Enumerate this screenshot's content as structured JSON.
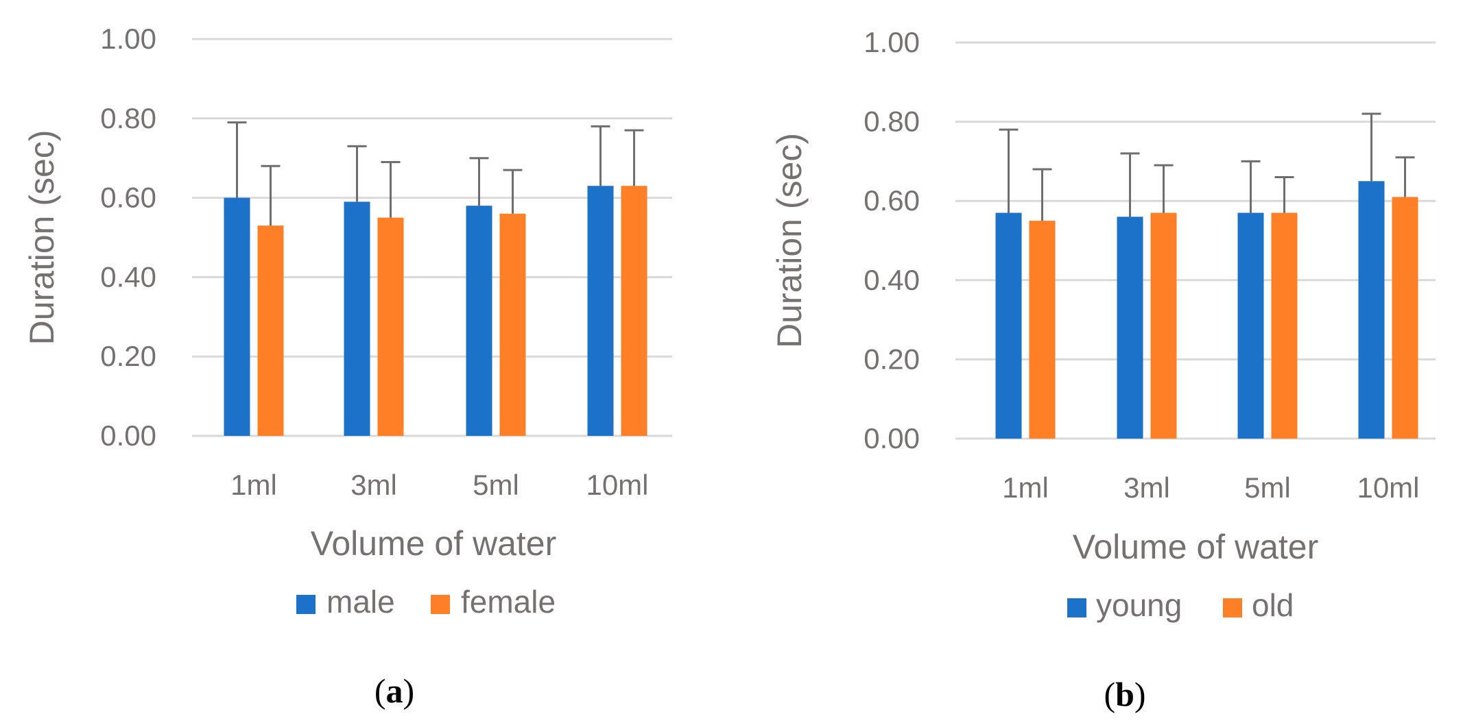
{
  "colors": {
    "series_1": "#1C71C9",
    "series_2": "#FF7F27",
    "gridline": "#D9D9D9",
    "error_bar": "#6E6E6E",
    "text": "#767171"
  },
  "chart_data": [
    {
      "type": "bar",
      "panel_label": {
        "open": "(",
        "letter": "a",
        "close": ")"
      },
      "categories": [
        "1ml",
        "3ml",
        "5ml",
        "10ml"
      ],
      "series": [
        {
          "name": "male",
          "values": [
            0.6,
            0.59,
            0.58,
            0.63
          ],
          "error": [
            0.19,
            0.14,
            0.12,
            0.15
          ]
        },
        {
          "name": "female",
          "values": [
            0.53,
            0.55,
            0.56,
            0.63
          ],
          "error": [
            0.15,
            0.14,
            0.11,
            0.14
          ]
        }
      ],
      "title": "",
      "xlabel": "Volume of water",
      "ylabel": "Duration (sec)",
      "ylim": [
        0,
        1
      ],
      "yticks": [
        "0.00",
        "0.20",
        "0.40",
        "0.60",
        "0.80",
        "1.00"
      ],
      "grid": true,
      "legend_position": "bottom"
    },
    {
      "type": "bar",
      "panel_label": {
        "open": "(",
        "letter": "b",
        "close": ")"
      },
      "categories": [
        "1ml",
        "3ml",
        "5ml",
        "10ml"
      ],
      "series": [
        {
          "name": "young",
          "values": [
            0.57,
            0.56,
            0.57,
            0.65
          ],
          "error": [
            0.21,
            0.16,
            0.13,
            0.17
          ]
        },
        {
          "name": "old",
          "values": [
            0.55,
            0.57,
            0.57,
            0.61
          ],
          "error": [
            0.13,
            0.12,
            0.09,
            0.1
          ]
        }
      ],
      "title": "",
      "xlabel": "Volume of water",
      "ylabel": "Duration (sec)",
      "ylim": [
        0,
        1
      ],
      "yticks": [
        "0.00",
        "0.20",
        "0.40",
        "0.60",
        "0.80",
        "1.00"
      ],
      "grid": true,
      "legend_position": "bottom"
    }
  ]
}
